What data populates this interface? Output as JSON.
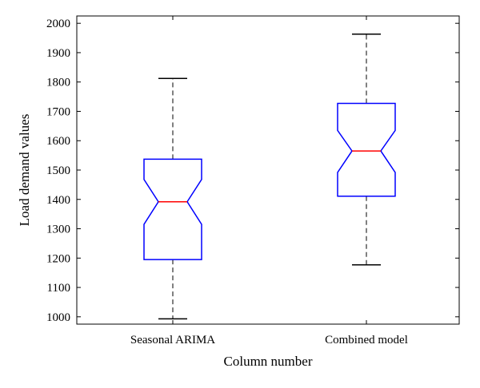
{
  "chart_data": {
    "type": "boxplot",
    "title": "",
    "xlabel": "Column number",
    "ylabel": "Load demand values",
    "ylim": [
      975,
      2025
    ],
    "yticks": [
      1000,
      1100,
      1200,
      1300,
      1400,
      1500,
      1600,
      1700,
      1800,
      1900,
      2000
    ],
    "notched": true,
    "grid": false,
    "categories": [
      "Seasonal ARIMA",
      "Combined model"
    ],
    "boxes": [
      {
        "label": "Seasonal ARIMA",
        "whisker_low": 993,
        "q1": 1195,
        "notch_low": 1315,
        "median": 1392,
        "notch_high": 1468,
        "q3": 1537,
        "whisker_high": 1812
      },
      {
        "label": "Combined model",
        "whisker_low": 1177,
        "q1": 1411,
        "notch_low": 1492,
        "median": 1565,
        "notch_high": 1635,
        "q3": 1727,
        "whisker_high": 1963
      }
    ],
    "colors": {
      "box": "#0000ff",
      "median": "#ff0000",
      "whisker": "#000000",
      "axes": "#000000"
    }
  }
}
